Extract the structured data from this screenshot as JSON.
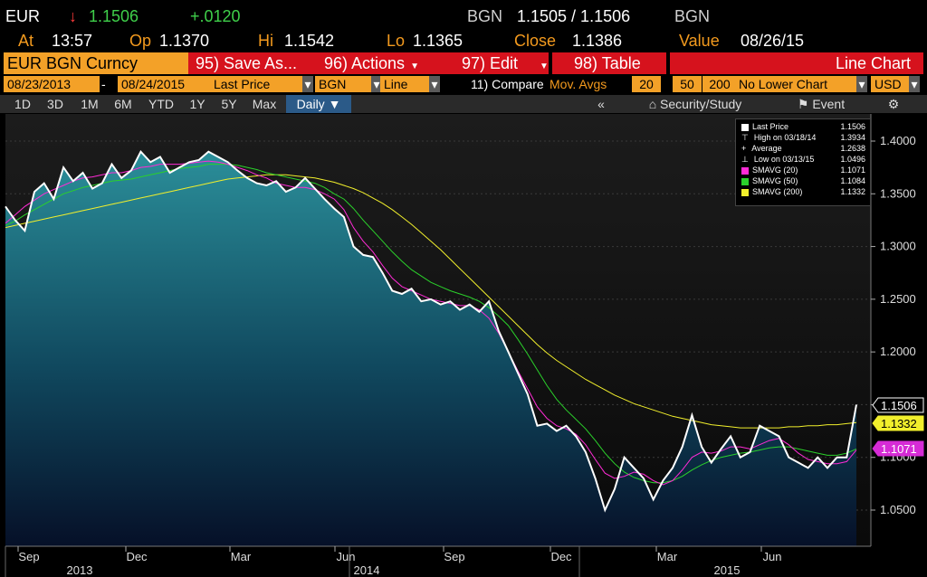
{
  "header": {
    "ticker": "EUR",
    "arrow": "↓",
    "last": "1.1506",
    "change": "+.0120",
    "quote_ccy": "BGN",
    "bid_ask": "1.1505 / 1.1506",
    "quote_ccy2": "BGN",
    "at_label": "At",
    "time": "13:57",
    "op_label": "Op",
    "open": "1.1370",
    "hi_label": "Hi",
    "high": "1.1542",
    "lo_label": "Lo",
    "low": "1.1365",
    "close_label": "Close",
    "close": "1.1386",
    "value_label": "Value",
    "value_date": "08/26/15"
  },
  "toolbar": {
    "security": "EUR BGN Curncy",
    "save": "95) Save As...",
    "actions": "96) Actions",
    "edit": "97) Edit",
    "table": "98) Table",
    "chart_type": "Line Chart"
  },
  "controls": {
    "start_date": "08/23/2013",
    "dash": "-",
    "end_date": "08/24/2015",
    "field": "Last Price",
    "field_ccy": "BGN",
    "style": "Line",
    "compare": "11) Compare",
    "mov_avgs": "Mov. Avgs",
    "ma1": "20",
    "ma2": "50",
    "ma3": "200",
    "lower": "No Lower Chart",
    "ccy": "USD"
  },
  "periods": [
    "1D",
    "3D",
    "1M",
    "6M",
    "YTD",
    "1Y",
    "5Y",
    "Max"
  ],
  "frequency": "Daily ▼",
  "tools": {
    "collapse": "«",
    "study": "Security/Study",
    "event": "Event",
    "gear": "gear-icon"
  },
  "legend": {
    "items": [
      {
        "label": "Last Price",
        "value": "1.1506",
        "color": "#ffffff"
      },
      {
        "label": "High on 03/18/14",
        "value": "1.3934",
        "color": "#ffffff"
      },
      {
        "label": "Average",
        "value": "1.2638",
        "color": "#ffffff"
      },
      {
        "label": "Low on 03/13/15",
        "value": "1.0496",
        "color": "#ffffff"
      },
      {
        "label": "SMAVG (20)",
        "value": "1.1071",
        "color": "#ff2bd6"
      },
      {
        "label": "SMAVG (50)",
        "value": "1.1084",
        "color": "#2bd12b"
      },
      {
        "label": "SMAVG (200)",
        "value": "1.1332",
        "color": "#f1ef2c"
      }
    ]
  },
  "chart_data": {
    "type": "line",
    "y_ticks": [
      "1.4000",
      "1.3500",
      "1.3000",
      "1.2500",
      "1.2000",
      "1.1500",
      "1.1000",
      "1.0500"
    ],
    "ylim": [
      1.03,
      1.42
    ],
    "x_ticks": [
      "Sep",
      "Dec",
      "Mar",
      "Jun",
      "Sep",
      "Dec",
      "Mar",
      "Jun"
    ],
    "years": [
      "2013",
      "2014",
      "2015"
    ],
    "last_tag": "1.1506",
    "sma200_tag": "1.1332",
    "sma20_tag": "1.1071",
    "colors": {
      "price": "#ffffff",
      "sma20": "#ff2bd6",
      "sma50": "#2bd12b",
      "sma200": "#f1ef2c",
      "area_top": "#2b8f9a",
      "area_bottom": "#061028"
    },
    "series": [
      {
        "name": "Last Price",
        "values": [
          1.338,
          1.325,
          1.315,
          1.352,
          1.36,
          1.345,
          1.375,
          1.362,
          1.37,
          1.355,
          1.36,
          1.378,
          1.365,
          1.372,
          1.39,
          1.38,
          1.385,
          1.37,
          1.375,
          1.38,
          1.382,
          1.39,
          1.385,
          1.38,
          1.372,
          1.365,
          1.36,
          1.358,
          1.362,
          1.352,
          1.356,
          1.365,
          1.355,
          1.345,
          1.336,
          1.328,
          1.3,
          1.292,
          1.29,
          1.275,
          1.258,
          1.255,
          1.26,
          1.248,
          1.25,
          1.245,
          1.248,
          1.24,
          1.245,
          1.238,
          1.248,
          1.22,
          1.2,
          1.18,
          1.16,
          1.13,
          1.132,
          1.125,
          1.13,
          1.12,
          1.105,
          1.08,
          1.05,
          1.07,
          1.1,
          1.09,
          1.08,
          1.06,
          1.078,
          1.09,
          1.11,
          1.14,
          1.11,
          1.095,
          1.108,
          1.12,
          1.1,
          1.105,
          1.13,
          1.125,
          1.12,
          1.1,
          1.095,
          1.09,
          1.1,
          1.09,
          1.1,
          1.1,
          1.15
        ]
      },
      {
        "name": "SMAVG (20)",
        "values": [
          1.322,
          1.33,
          1.338,
          1.344,
          1.35,
          1.354,
          1.358,
          1.362,
          1.365,
          1.366,
          1.368,
          1.37,
          1.37,
          1.372,
          1.375,
          1.376,
          1.378,
          1.378,
          1.378,
          1.379,
          1.38,
          1.381,
          1.38,
          1.378,
          1.375,
          1.372,
          1.368,
          1.365,
          1.36,
          1.358,
          1.356,
          1.356,
          1.354,
          1.35,
          1.345,
          1.335,
          1.318,
          1.305,
          1.295,
          1.282,
          1.27,
          1.262,
          1.258,
          1.254,
          1.25,
          1.248,
          1.246,
          1.244,
          1.244,
          1.24,
          1.232,
          1.218,
          1.2,
          1.182,
          1.165,
          1.148,
          1.137,
          1.13,
          1.127,
          1.122,
          1.112,
          1.098,
          1.085,
          1.08,
          1.082,
          1.086,
          1.084,
          1.078,
          1.074,
          1.078,
          1.088,
          1.1,
          1.105,
          1.104,
          1.106,
          1.11,
          1.11,
          1.108,
          1.112,
          1.116,
          1.118,
          1.112,
          1.104,
          1.098,
          1.096,
          1.094,
          1.094,
          1.096,
          1.107
        ]
      },
      {
        "name": "SMAVG (50)",
        "values": [
          1.32,
          1.324,
          1.33,
          1.335,
          1.34,
          1.345,
          1.35,
          1.353,
          1.356,
          1.358,
          1.36,
          1.362,
          1.363,
          1.364,
          1.366,
          1.368,
          1.37,
          1.372,
          1.374,
          1.375,
          1.376,
          1.378,
          1.378,
          1.378,
          1.377,
          1.375,
          1.373,
          1.37,
          1.368,
          1.366,
          1.364,
          1.362,
          1.36,
          1.356,
          1.35,
          1.345,
          1.336,
          1.325,
          1.315,
          1.305,
          1.295,
          1.286,
          1.278,
          1.272,
          1.266,
          1.262,
          1.258,
          1.255,
          1.252,
          1.248,
          1.242,
          1.234,
          1.225,
          1.212,
          1.198,
          1.183,
          1.168,
          1.155,
          1.145,
          1.136,
          1.127,
          1.116,
          1.104,
          1.094,
          1.086,
          1.081,
          1.078,
          1.076,
          1.076,
          1.078,
          1.082,
          1.088,
          1.093,
          1.097,
          1.1,
          1.102,
          1.104,
          1.105,
          1.107,
          1.109,
          1.11,
          1.11,
          1.108,
          1.106,
          1.104,
          1.102,
          1.102,
          1.104,
          1.108
        ]
      },
      {
        "name": "SMAVG (200)",
        "values": [
          1.318,
          1.32,
          1.322,
          1.324,
          1.326,
          1.328,
          1.33,
          1.332,
          1.334,
          1.336,
          1.338,
          1.34,
          1.342,
          1.344,
          1.346,
          1.348,
          1.35,
          1.352,
          1.354,
          1.356,
          1.358,
          1.36,
          1.362,
          1.364,
          1.365,
          1.366,
          1.367,
          1.368,
          1.368,
          1.368,
          1.367,
          1.366,
          1.365,
          1.363,
          1.361,
          1.358,
          1.355,
          1.351,
          1.346,
          1.341,
          1.335,
          1.328,
          1.321,
          1.313,
          1.305,
          1.297,
          1.288,
          1.279,
          1.27,
          1.261,
          1.252,
          1.243,
          1.234,
          1.225,
          1.216,
          1.207,
          1.199,
          1.192,
          1.186,
          1.18,
          1.174,
          1.169,
          1.164,
          1.159,
          1.155,
          1.151,
          1.148,
          1.145,
          1.142,
          1.139,
          1.137,
          1.135,
          1.133,
          1.131,
          1.13,
          1.129,
          1.128,
          1.128,
          1.128,
          1.128,
          1.128,
          1.129,
          1.129,
          1.13,
          1.13,
          1.131,
          1.131,
          1.132,
          1.133
        ]
      }
    ]
  }
}
